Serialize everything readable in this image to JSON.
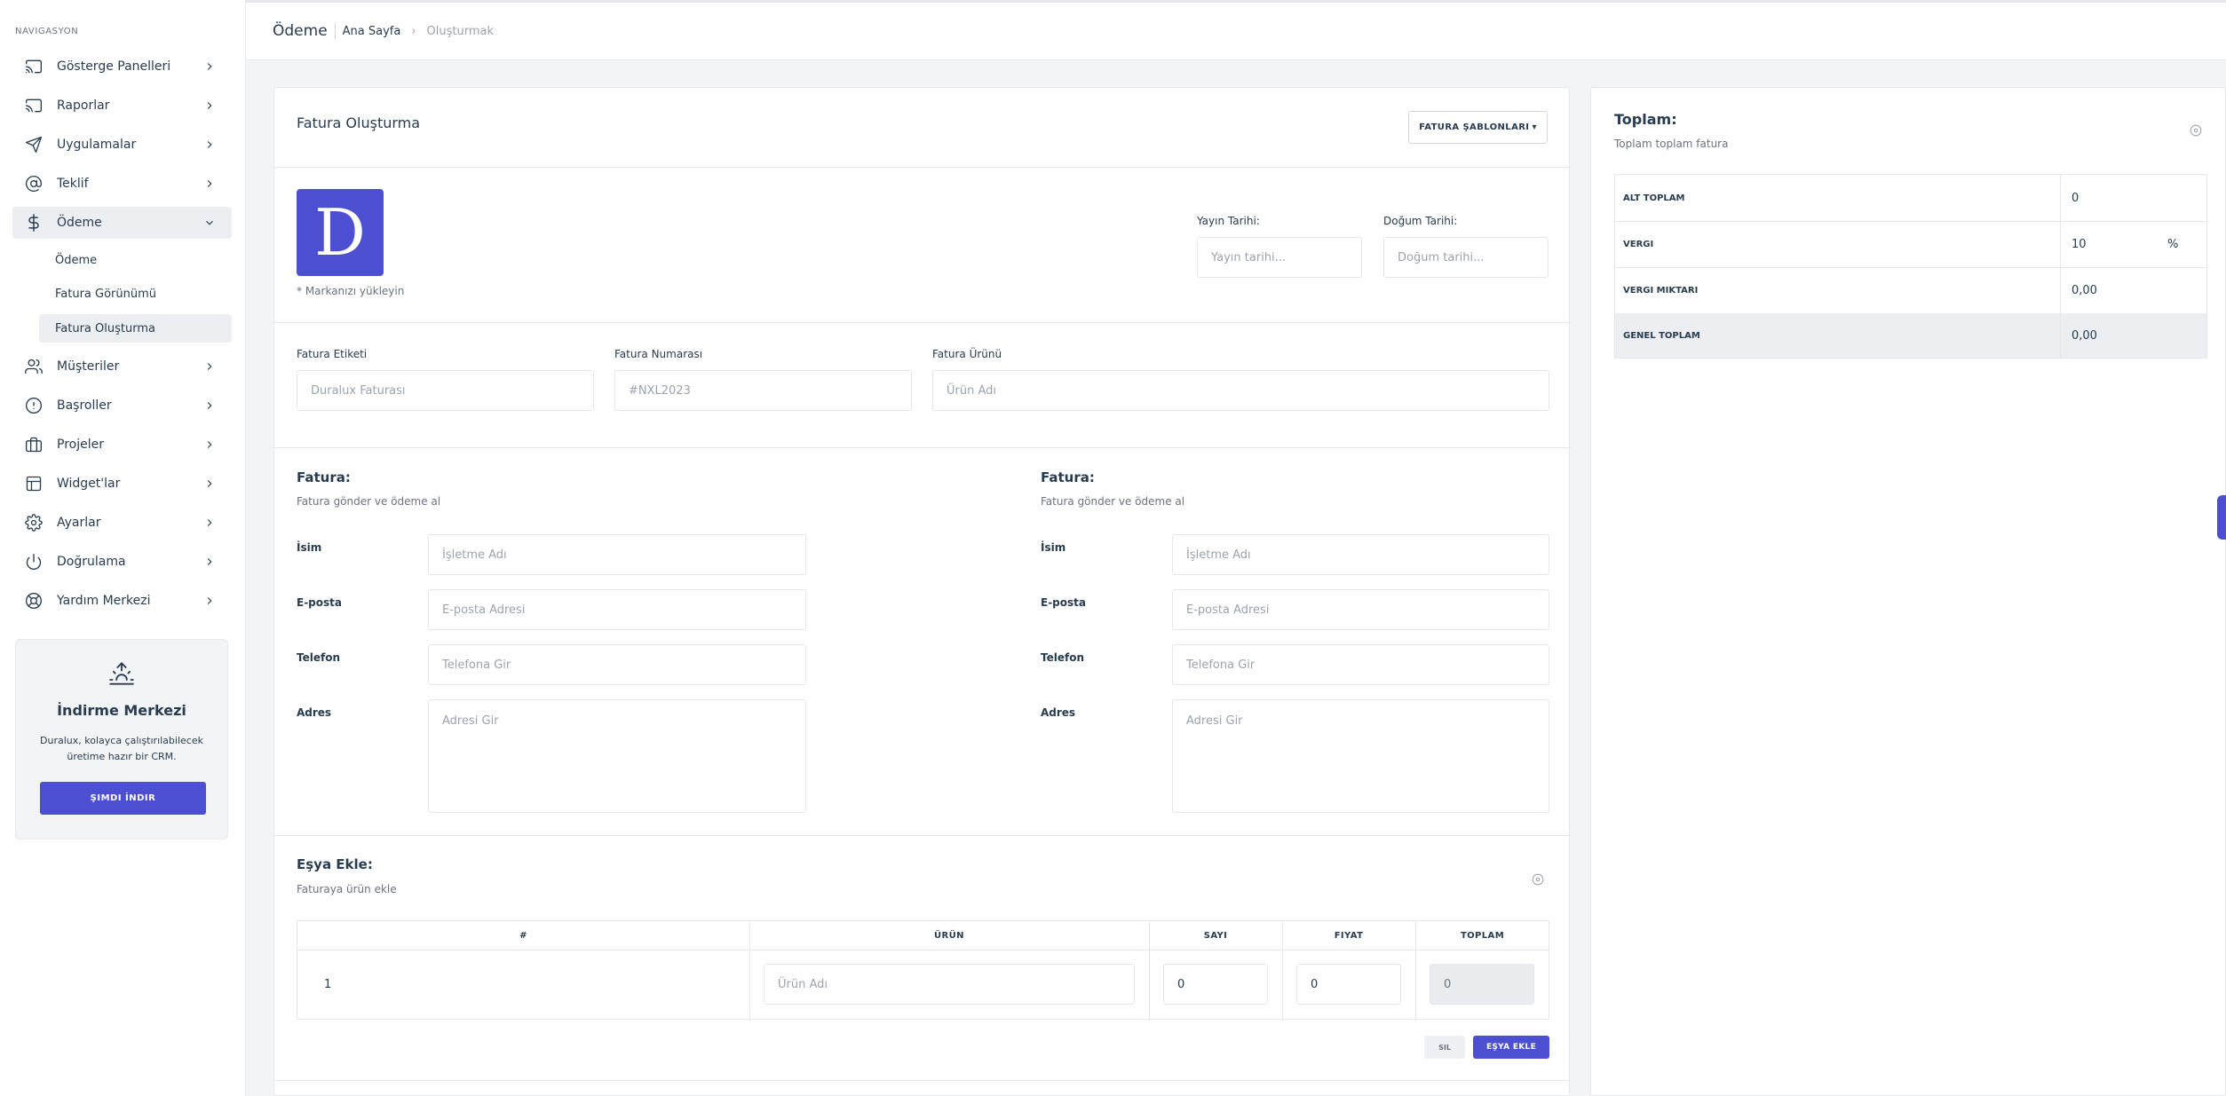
{
  "sidebar": {
    "caption": "NAVIGASYON",
    "items": [
      {
        "label": "Gösterge Panelleri",
        "icon": "monitor-icon"
      },
      {
        "label": "Raporlar",
        "icon": "cast-icon"
      },
      {
        "label": "Uygulamalar",
        "icon": "send-icon"
      },
      {
        "label": "Teklif",
        "icon": "at-sign-icon"
      },
      {
        "label": "Ödeme",
        "icon": "dollar-sign-icon"
      },
      {
        "label": "Müşteriler",
        "icon": "users-icon"
      },
      {
        "label": "Başroller",
        "icon": "alert-circle-icon"
      },
      {
        "label": "Projeler",
        "icon": "briefcase-icon"
      },
      {
        "label": "Widget'lar",
        "icon": "layout-icon"
      },
      {
        "label": "Ayarlar",
        "icon": "settings-icon"
      },
      {
        "label": "Doğrulama",
        "icon": "power-icon"
      },
      {
        "label": "Yardım Merkezi",
        "icon": "life-buoy-icon"
      }
    ],
    "subitems": [
      {
        "label": "Ödeme"
      },
      {
        "label": "Fatura Görünümü"
      },
      {
        "label": "Fatura Oluşturma"
      }
    ],
    "download": {
      "title": "İndirme Merkezi",
      "text": "Duralux, kolayca çalıştırılabilecek üretime hazır bir CRM.",
      "button": "ŞIMDI İNDIR"
    }
  },
  "header": {
    "title": "Ödeme",
    "breadcrumb_home": "Ana Sayfa",
    "breadcrumb_current": "Oluşturmak"
  },
  "invoice": {
    "title": "Fatura Oluşturma",
    "templates_button": "FATURA ŞABLONLARI",
    "logo_letter": "D",
    "logo_note": "* Markanızı yükleyin",
    "issue_date_label": "Yayın Tarihi:",
    "issue_date_placeholder": "Yayın tarihi...",
    "due_date_label": "Doğum Tarihi:",
    "due_date_placeholder": "Doğum tarihi...",
    "label_label": "Fatura Etiketi",
    "label_placeholder": "Duralux Faturası",
    "number_label": "Fatura Numarası",
    "number_placeholder": "#NXL2023",
    "product_label": "Fatura Ürünü",
    "product_placeholder": "Ürün Adı"
  },
  "from": {
    "title": "Fatura:",
    "subtitle": "Fatura gönder ve ödeme al",
    "name_label": "İsim",
    "name_placeholder": "İşletme Adı",
    "email_label": "E-posta",
    "email_placeholder": "E-posta Adresi",
    "phone_label": "Telefon",
    "phone_placeholder": "Telefona Gir",
    "address_label": "Adres",
    "address_placeholder": "Adresi Gir"
  },
  "to": {
    "title": "Fatura:",
    "subtitle": "Fatura gönder ve ödeme al",
    "name_label": "İsim",
    "name_placeholder": "İşletme Adı",
    "email_label": "E-posta",
    "email_placeholder": "E-posta Adresi",
    "phone_label": "Telefon",
    "phone_placeholder": "Telefona Gir",
    "address_label": "Adres",
    "address_placeholder": "Adresi Gir"
  },
  "items": {
    "title": "Eşya Ekle:",
    "subtitle": "Faturaya ürün ekle",
    "headers": [
      "#",
      "ÜRÜN",
      "SAYI",
      "FIYAT",
      "TOPLAM"
    ],
    "rows": [
      {
        "num": "1",
        "product_placeholder": "Ürün Adı",
        "qty": "0",
        "price": "0",
        "total": "0"
      }
    ],
    "delete_button": "SIL",
    "add_button": "EŞYA EKLE"
  },
  "totals": {
    "title": "Toplam:",
    "subtitle": "Toplam toplam fatura",
    "rows": [
      {
        "label": "ALT TOPLAM",
        "value": "0",
        "unit": ""
      },
      {
        "label": "VERGI",
        "value": "10",
        "unit": "%"
      },
      {
        "label": "VERGI MIKTARI",
        "value": "0,00",
        "unit": ""
      },
      {
        "label": "GENEL TOPLAM",
        "value": "0,00",
        "unit": ""
      }
    ]
  },
  "colors": {
    "accent": "#4c4fd2",
    "text": "#283c50",
    "border": "#e5e7eb"
  }
}
